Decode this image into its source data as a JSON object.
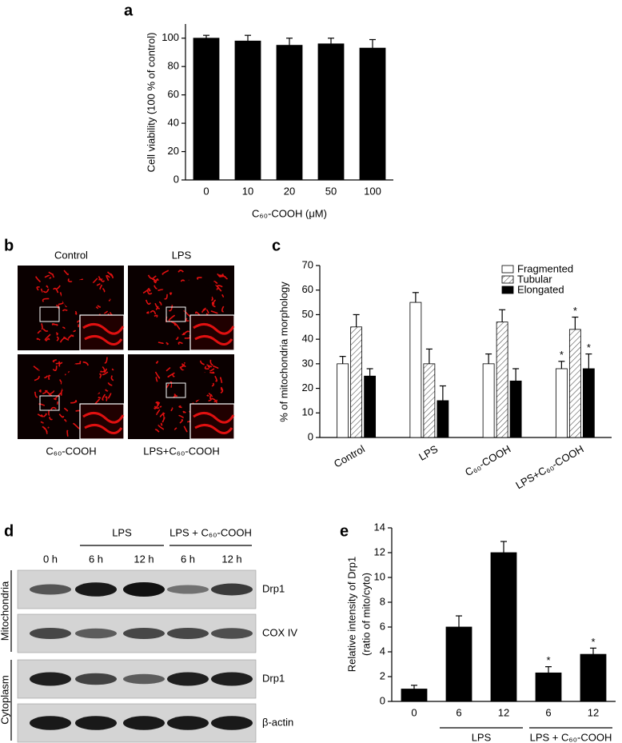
{
  "chart_data": [
    {
      "panel": "a",
      "type": "bar",
      "categories": [
        "0",
        "10",
        "20",
        "50",
        "100"
      ],
      "values": [
        100,
        98,
        95,
        96,
        93
      ],
      "errors": [
        2,
        4,
        5,
        4,
        6
      ],
      "color": "#000000",
      "ylim": [
        0,
        110
      ],
      "yticks": [
        0,
        20,
        40,
        60,
        80,
        100
      ],
      "xlabel": "C₆₀-COOH (μM)",
      "ylabel": "Cell viability (100 % of control)"
    },
    {
      "panel": "c",
      "type": "bar",
      "categories": [
        "Control",
        "LPS",
        "C₆₀-COOH",
        "LPS+C₆₀-COOH"
      ],
      "series": [
        {
          "name": "Fragmented",
          "color": "#ffffff",
          "values": [
            30,
            55,
            30,
            28
          ],
          "errors": [
            3,
            4,
            4,
            3
          ],
          "markers": [
            null,
            null,
            null,
            "*"
          ]
        },
        {
          "name": "Tubular",
          "color": "#ffffff",
          "hatch": true,
          "values": [
            45,
            30,
            47,
            44
          ],
          "errors": [
            5,
            6,
            5,
            5
          ],
          "markers": [
            null,
            null,
            null,
            "*"
          ]
        },
        {
          "name": "Elongated",
          "color": "#000000",
          "values": [
            25,
            15,
            23,
            28
          ],
          "errors": [
            3,
            6,
            5,
            6
          ],
          "markers": [
            null,
            null,
            null,
            "*"
          ]
        }
      ],
      "ylim": [
        0,
        70
      ],
      "yticks": [
        0,
        10,
        20,
        30,
        40,
        50,
        60,
        70
      ],
      "ylabel": "% of mitochondria morphology",
      "legend": "upper right"
    },
    {
      "panel": "e",
      "type": "bar",
      "categories": [
        "0",
        "6",
        "12",
        "6",
        "12"
      ],
      "values": [
        1,
        6,
        12,
        2.3,
        3.8
      ],
      "errors": [
        0.3,
        0.9,
        0.9,
        0.5,
        0.5
      ],
      "markers": [
        null,
        null,
        null,
        "*",
        "*"
      ],
      "color": "#000000",
      "ylim": [
        0,
        14
      ],
      "yticks": [
        0,
        2,
        4,
        6,
        8,
        10,
        12,
        14
      ],
      "ylabel": [
        "Relative intensity of Drp1",
        "(ratio of mito/cyto)"
      ],
      "group_labels": [
        "LPS",
        "LPS + C₆₀-COOH"
      ]
    }
  ],
  "images": {
    "panel": "b",
    "labels": [
      "Control",
      "LPS",
      "C₆₀-COOH",
      "LPS+C₆₀-COOH"
    ]
  },
  "blot": {
    "panel": "d",
    "groups": [
      "LPS",
      "LPS + C₆₀-COOH"
    ],
    "lanes": [
      "0 h",
      "6 h",
      "12 h",
      "6 h",
      "12 h"
    ],
    "rows": [
      "Drp1",
      "COX IV",
      "Drp1",
      "β-actin"
    ],
    "sections": [
      "Mitochondria",
      "Cytoplasm"
    ]
  }
}
